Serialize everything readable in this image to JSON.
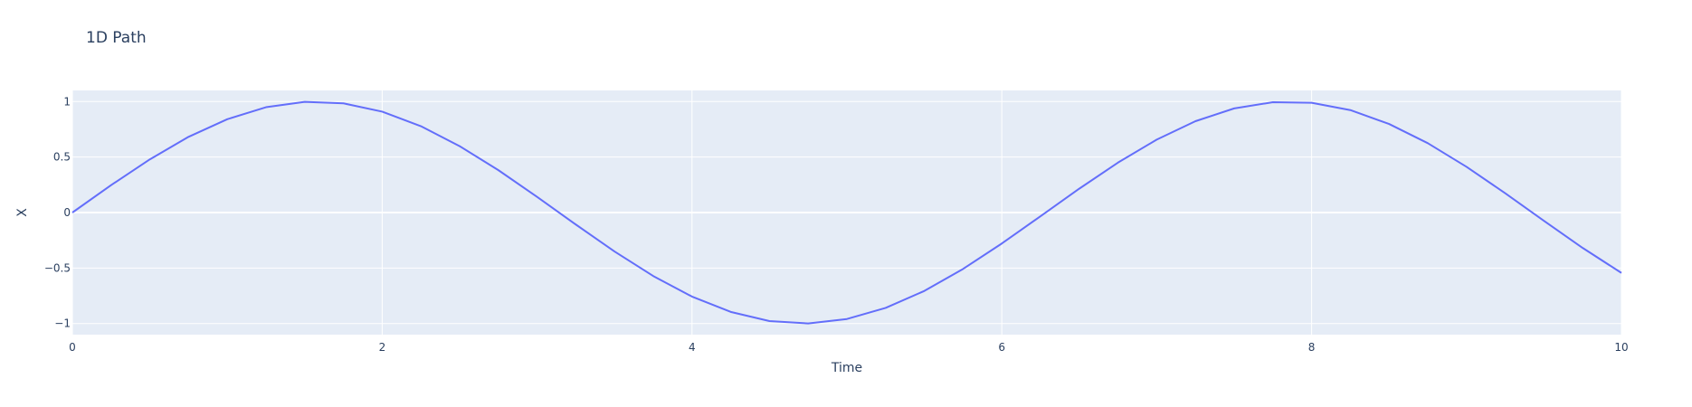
{
  "chart_data": {
    "type": "line",
    "title": "1D Path",
    "xlabel": "Time",
    "ylabel": "X",
    "xlim": [
      0,
      10
    ],
    "ylim": [
      -1.1,
      1.1
    ],
    "x_ticks": [
      0,
      2,
      4,
      6,
      8,
      10
    ],
    "y_ticks": [
      -1,
      -0.5,
      0,
      0.5,
      1
    ],
    "x_tick_labels": [
      "0",
      "2",
      "4",
      "6",
      "8",
      "10"
    ],
    "y_tick_labels": [
      "−1",
      "−0.5",
      "0",
      "0.5",
      "1"
    ],
    "grid": true,
    "colors": {
      "plot_background": "#e5ecf6",
      "grid": "#ffffff",
      "line": "#636efa",
      "text": "#2a3f5f"
    },
    "series": [
      {
        "x": [
          0,
          0.25,
          0.5,
          0.75,
          1,
          1.25,
          1.5,
          1.75,
          2,
          2.25,
          2.5,
          2.75,
          3,
          3.25,
          3.5,
          3.75,
          4,
          4.25,
          4.5,
          4.75,
          5,
          5.25,
          5.5,
          5.75,
          6,
          6.25,
          6.5,
          6.75,
          7,
          7.25,
          7.5,
          7.75,
          8,
          8.25,
          8.5,
          8.75,
          9,
          9.25,
          9.5,
          9.75,
          10
        ],
        "y": [
          0,
          0.247,
          0.479,
          0.682,
          0.841,
          0.949,
          0.997,
          0.984,
          0.909,
          0.778,
          0.598,
          0.382,
          0.141,
          -0.108,
          -0.351,
          -0.572,
          -0.757,
          -0.895,
          -0.978,
          -0.999,
          -0.959,
          -0.859,
          -0.706,
          -0.508,
          -0.279,
          -0.033,
          0.215,
          0.45,
          0.657,
          0.823,
          0.938,
          0.994,
          0.989,
          0.923,
          0.798,
          0.625,
          0.412,
          0.174,
          -0.075,
          -0.319,
          -0.544
        ]
      }
    ]
  }
}
